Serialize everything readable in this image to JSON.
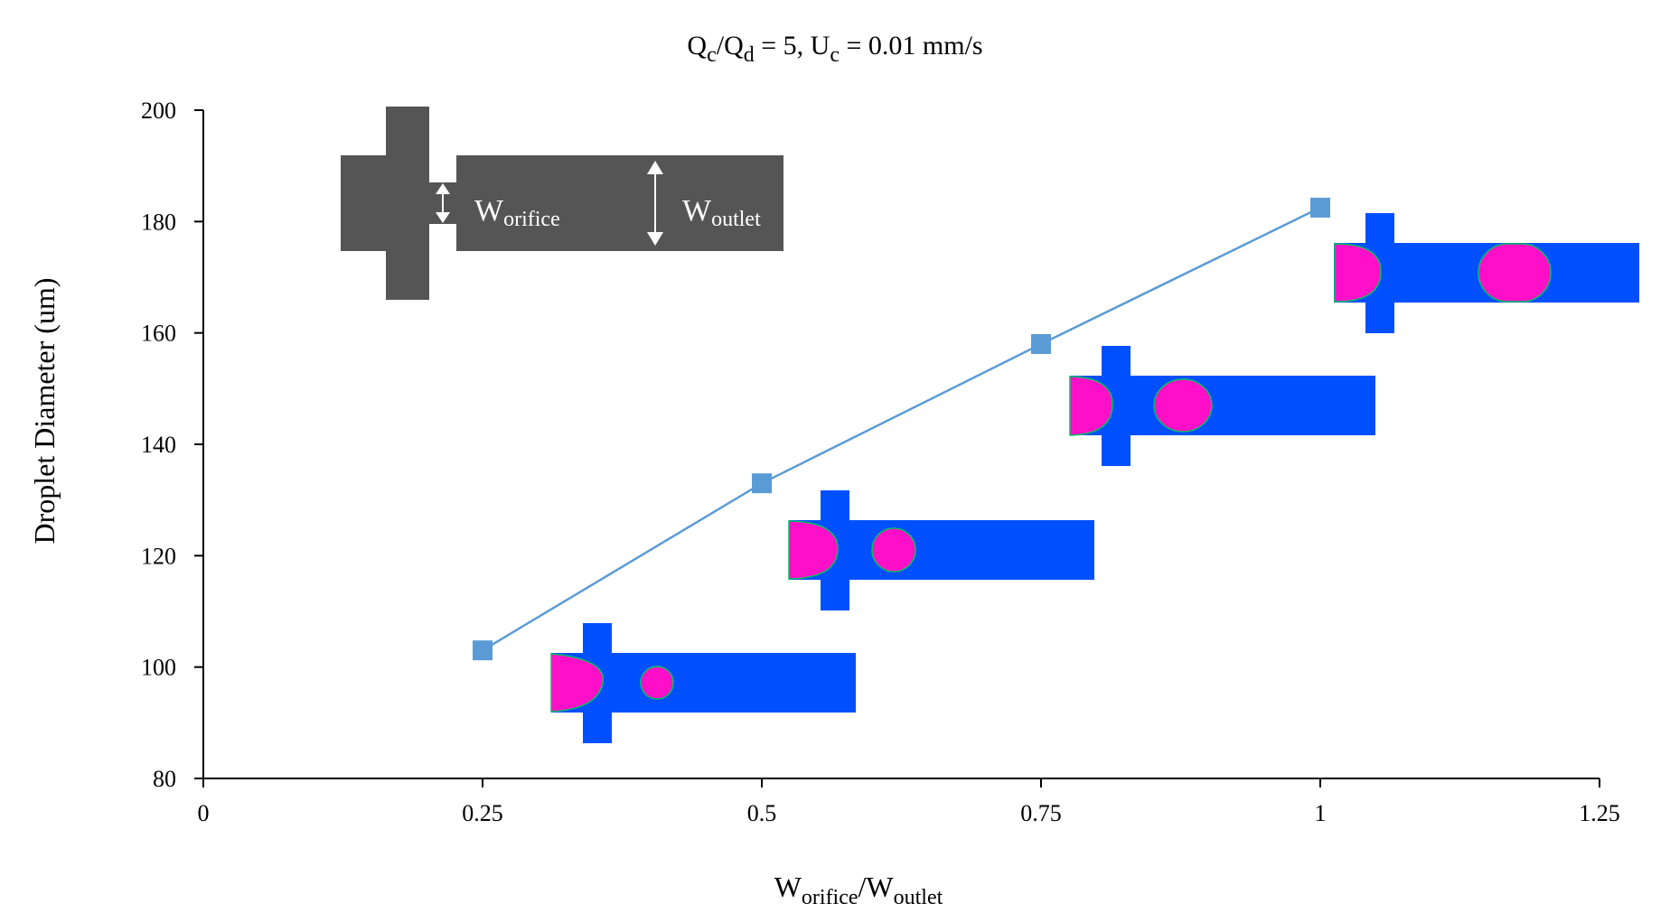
{
  "chart_data": {
    "type": "line",
    "title": {
      "q_c": "Q",
      "q_c_sub": "c",
      "slash": "/",
      "q_d": "Q",
      "q_d_sub": "d",
      "eq1": " = 5, ",
      "u": "U",
      "u_sub": "c",
      "eq2": " = 0.01 mm/s"
    },
    "xlabel": {
      "w1": "W",
      "w1_sub": "orifice",
      "slash": "/",
      "w2": "W",
      "w2_sub": "outlet"
    },
    "ylabel": "Droplet Diameter  (um)",
    "xlim": [
      0,
      1.25
    ],
    "ylim": [
      80,
      200
    ],
    "x_ticks": [
      0,
      0.25,
      0.5,
      0.75,
      1,
      1.25
    ],
    "x_tick_labels": [
      "0",
      "0.25",
      "0.5",
      "0.75",
      "1",
      "1.25"
    ],
    "y_ticks": [
      80,
      100,
      120,
      140,
      160,
      180,
      200
    ],
    "y_tick_labels": [
      "80",
      "100",
      "120",
      "140",
      "160",
      "180",
      "200"
    ],
    "grid": false,
    "legend": "none",
    "series": [
      {
        "x": [
          0.25,
          0.5,
          0.75,
          1.0
        ],
        "y": [
          103,
          133,
          158,
          182.5
        ],
        "color": "#5b9bd5"
      }
    ],
    "schematic_labels": {
      "orifice": "W",
      "orifice_sub": "orifice",
      "outlet": "W",
      "outlet_sub": "outlet"
    },
    "colors": {
      "channel_schematic": "#555555",
      "channel_sim": "#0050ff",
      "droplet": "#ff10c8",
      "line": "#5b9bd5"
    }
  }
}
